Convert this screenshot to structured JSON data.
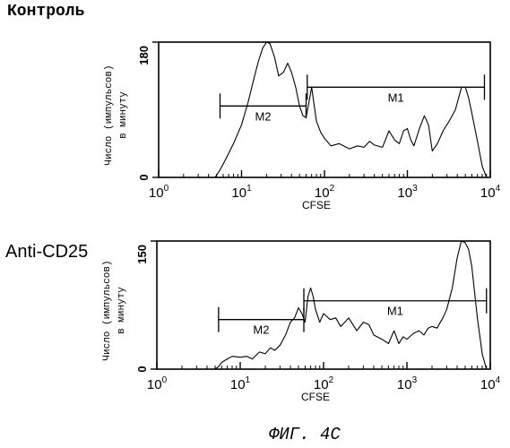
{
  "caption": "ФИГ. 4C",
  "chart_data": [
    {
      "type": "area",
      "title": "Контроль",
      "xlabel": "CFSE",
      "ylabel_line1": "Число (импульсов)",
      "ylabel_line2": "в минуту",
      "xscale": "log",
      "xlim": [
        1,
        10000
      ],
      "ylim": [
        0,
        180
      ],
      "x_tick_values": [
        1,
        10,
        100,
        1000,
        10000
      ],
      "x_ticks": [
        {
          "base": "10",
          "exp": "0"
        },
        {
          "base": "10",
          "exp": "1"
        },
        {
          "base": "10",
          "exp": "2"
        },
        {
          "base": "10",
          "exp": "3"
        },
        {
          "base": "10",
          "exp": "4"
        }
      ],
      "y_ticks": [
        "0",
        "180"
      ],
      "gates": [
        {
          "name": "M2",
          "x_start": 5.5,
          "x_end": 60,
          "y": 95
        },
        {
          "name": "M1",
          "x_start": 62,
          "x_end": 8500,
          "y": 120
        }
      ],
      "x": [
        4.8,
        5.5,
        6.5,
        8,
        10,
        12,
        14,
        16,
        18,
        20,
        22,
        25,
        28,
        32,
        36,
        40,
        45,
        50,
        55,
        60,
        65,
        70,
        80,
        90,
        100,
        120,
        150,
        200,
        250,
        300,
        350,
        400,
        500,
        600,
        700,
        800,
        900,
        1000,
        1100,
        1200,
        1400,
        1600,
        1800,
        2000,
        2300,
        2700,
        3200,
        3800,
        4500,
        5000,
        5500,
        6000,
        7000,
        8000,
        9000
      ],
      "values": [
        0,
        10,
        25,
        45,
        70,
        100,
        130,
        155,
        172,
        180,
        178,
        160,
        135,
        140,
        152,
        140,
        120,
        95,
        82,
        80,
        100,
        120,
        75,
        60,
        52,
        42,
        45,
        38,
        42,
        40,
        48,
        43,
        40,
        62,
        50,
        45,
        62,
        65,
        50,
        42,
        65,
        82,
        70,
        35,
        45,
        62,
        75,
        90,
        120,
        120,
        105,
        85,
        48,
        15,
        0
      ]
    },
    {
      "type": "area",
      "title": "Anti-CD25",
      "xlabel": "CFSE",
      "ylabel_line1": "Число (импульсов)",
      "ylabel_line2": "в минуту",
      "xscale": "log",
      "xlim": [
        1,
        10000
      ],
      "ylim": [
        0,
        150
      ],
      "x_tick_values": [
        1,
        10,
        100,
        1000,
        10000
      ],
      "x_ticks": [
        {
          "base": "10",
          "exp": "0"
        },
        {
          "base": "10",
          "exp": "1"
        },
        {
          "base": "10",
          "exp": "2"
        },
        {
          "base": "10",
          "exp": "3"
        },
        {
          "base": "10",
          "exp": "4"
        }
      ],
      "y_ticks": [
        "0",
        "150"
      ],
      "gates": [
        {
          "name": "M2",
          "x_start": 5.5,
          "x_end": 58,
          "y": 58
        },
        {
          "name": "M1",
          "x_start": 58,
          "x_end": 9000,
          "y": 80
        }
      ],
      "x": [
        5,
        5.5,
        6,
        7,
        8,
        10,
        12,
        14,
        17,
        20,
        23,
        26,
        30,
        35,
        40,
        45,
        50,
        55,
        60,
        65,
        70,
        75,
        80,
        90,
        100,
        120,
        140,
        160,
        180,
        200,
        250,
        300,
        350,
        400,
        500,
        600,
        700,
        800,
        900,
        1000,
        1200,
        1400,
        1600,
        1800,
        2000,
        2300,
        2700,
        3000,
        3500,
        4000,
        4500,
        5000,
        5500,
        6000,
        7000,
        8000,
        9000
      ],
      "values": [
        0,
        3,
        8,
        12,
        15,
        14,
        15,
        12,
        20,
        18,
        25,
        22,
        28,
        40,
        55,
        60,
        72,
        65,
        55,
        85,
        95,
        85,
        70,
        55,
        65,
        58,
        60,
        50,
        55,
        60,
        45,
        55,
        52,
        40,
        35,
        30,
        45,
        30,
        38,
        35,
        42,
        45,
        40,
        48,
        50,
        48,
        60,
        70,
        95,
        130,
        150,
        148,
        140,
        120,
        60,
        18,
        0
      ]
    }
  ]
}
